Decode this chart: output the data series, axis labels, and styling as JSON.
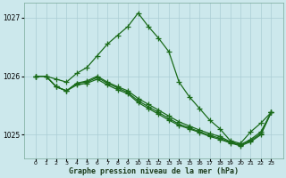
{
  "xlabel": "Graphe pression niveau de la mer (hPa)",
  "bg_color": "#cce8ec",
  "grid_color": "#aacdd4",
  "line_color": "#1a6b1a",
  "x": [
    0,
    1,
    2,
    3,
    4,
    5,
    6,
    7,
    8,
    9,
    10,
    11,
    12,
    13,
    14,
    15,
    16,
    17,
    18,
    19,
    20,
    21,
    22,
    23
  ],
  "line1": [
    1026.0,
    1026.0,
    1025.95,
    1025.9,
    1026.05,
    1026.15,
    1026.35,
    1026.55,
    1026.7,
    1026.85,
    1027.08,
    1026.85,
    1026.65,
    1026.42,
    1025.9,
    1025.65,
    1025.45,
    1025.25,
    1025.1,
    1024.9,
    1024.85,
    1025.05,
    1025.2,
    1025.38
  ],
  "line2": [
    1026.0,
    1026.0,
    1025.82,
    1025.75,
    1025.88,
    1025.92,
    1026.0,
    1025.9,
    1025.82,
    1025.75,
    1025.62,
    1025.52,
    1025.42,
    1025.32,
    1025.22,
    1025.15,
    1025.08,
    1025.02,
    1024.97,
    1024.88,
    1024.83,
    1024.92,
    1025.05,
    1025.38
  ],
  "line3": [
    1026.0,
    1026.0,
    1025.82,
    1025.75,
    1025.88,
    1025.9,
    1025.98,
    1025.88,
    1025.8,
    1025.72,
    1025.58,
    1025.48,
    1025.38,
    1025.28,
    1025.18,
    1025.12,
    1025.05,
    1024.99,
    1024.94,
    1024.87,
    1024.82,
    1024.9,
    1025.02,
    1025.38
  ],
  "line4": [
    1026.0,
    1026.0,
    1025.82,
    1025.75,
    1025.85,
    1025.88,
    1025.95,
    1025.85,
    1025.77,
    1025.7,
    1025.55,
    1025.45,
    1025.35,
    1025.25,
    1025.16,
    1025.1,
    1025.04,
    1024.97,
    1024.92,
    1024.86,
    1024.81,
    1024.88,
    1025.0,
    1025.38
  ],
  "ylim": [
    1024.6,
    1027.25
  ],
  "yticks": [
    1025,
    1026,
    1027
  ],
  "xticks": [
    0,
    1,
    2,
    3,
    4,
    5,
    6,
    7,
    8,
    9,
    10,
    11,
    12,
    13,
    14,
    15,
    16,
    17,
    18,
    19,
    20,
    21,
    22,
    23
  ],
  "markersize": 4,
  "linewidth": 0.9
}
